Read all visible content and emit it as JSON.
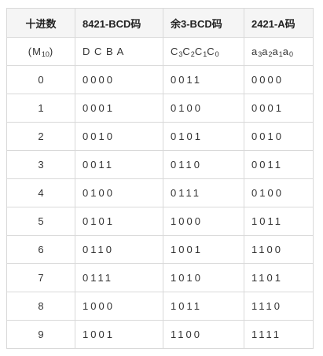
{
  "headers": [
    "十进数",
    "8421-BCD码",
    "余3-BCD码",
    "2421-A码"
  ],
  "label_row": {
    "decimal": {
      "main": "(M",
      "sub": "10",
      "tail": ")"
    },
    "bcd8421": "D C B A",
    "excess3": [
      {
        "main": "C",
        "sub": "3"
      },
      {
        "main": "C",
        "sub": "2"
      },
      {
        "main": "C",
        "sub": "1"
      },
      {
        "main": "C",
        "sub": "0"
      }
    ],
    "code2421a": [
      {
        "main": "a",
        "sub": "3"
      },
      {
        "main": "a",
        "sub": "2"
      },
      {
        "main": "a",
        "sub": "1"
      },
      {
        "main": "a",
        "sub": "0"
      }
    ]
  },
  "rows": [
    {
      "decimal": "0",
      "bcd8421": "0000",
      "excess3": "0011",
      "code2421a": "0000"
    },
    {
      "decimal": "1",
      "bcd8421": "0001",
      "excess3": "0100",
      "code2421a": "0001"
    },
    {
      "decimal": "2",
      "bcd8421": "0010",
      "excess3": "0101",
      "code2421a": "0010"
    },
    {
      "decimal": "3",
      "bcd8421": "0011",
      "excess3": "0110",
      "code2421a": "0011"
    },
    {
      "decimal": "4",
      "bcd8421": "0100",
      "excess3": "0111",
      "code2421a": "0100"
    },
    {
      "decimal": "5",
      "bcd8421": "0101",
      "excess3": "1000",
      "code2421a": "1011"
    },
    {
      "decimal": "6",
      "bcd8421": "0110",
      "excess3": "1001",
      "code2421a": "1100"
    },
    {
      "decimal": "7",
      "bcd8421": "0111",
      "excess3": "1010",
      "code2421a": "1101"
    },
    {
      "decimal": "8",
      "bcd8421": "1000",
      "excess3": "1011",
      "code2421a": "1110"
    },
    {
      "decimal": "9",
      "bcd8421": "1001",
      "excess3": "1100",
      "code2421a": "1111"
    }
  ]
}
